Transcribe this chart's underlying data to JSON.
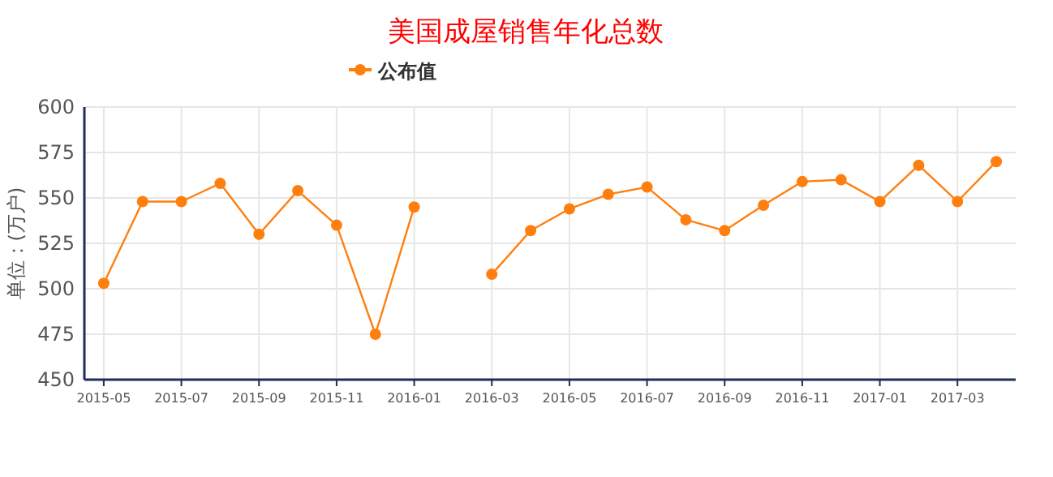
{
  "chart_data": {
    "type": "line",
    "title": "美国成屋销售年化总数",
    "ylabel": "单位：(万户)",
    "categories": [
      "2015-05",
      null,
      "2015-07",
      null,
      "2015-09",
      null,
      "2015-11",
      null,
      "2016-01",
      null,
      "2016-03",
      null,
      "2016-05",
      null,
      "2016-07",
      null,
      "2016-09",
      null,
      "2016-11",
      null,
      "2017-01",
      null,
      "2017-03",
      null
    ],
    "series": [
      {
        "name": "公布值",
        "color": "#ff7f0e",
        "values": [
          503,
          548,
          548,
          558,
          530,
          554,
          535,
          475,
          545,
          null,
          508,
          532,
          544,
          552,
          556,
          538,
          532,
          546,
          559,
          560,
          548,
          568,
          548,
          570
        ]
      }
    ],
    "ylim": [
      450,
      600
    ],
    "yticks": [
      450,
      475,
      500,
      525,
      550,
      575,
      600
    ],
    "grid": true,
    "legend": "top",
    "marker": "circle",
    "line_style": "solid"
  }
}
